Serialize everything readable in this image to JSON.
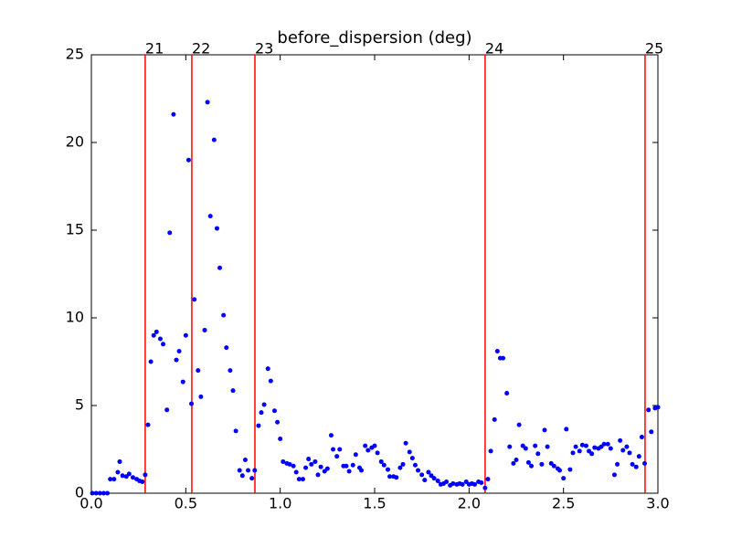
{
  "chart_data": {
    "type": "scatter",
    "title": "before_dispersion (deg)",
    "color": "#0000ff",
    "line_color": "#ff0000",
    "xlim": [
      0,
      3
    ],
    "ylim": [
      0,
      25
    ],
    "xticks": [
      {
        "value": 0,
        "label": "0.0"
      },
      {
        "value": 0.5,
        "label": "0.5"
      },
      {
        "value": 1,
        "label": "1.0"
      },
      {
        "value": 1.5,
        "label": "1.5"
      },
      {
        "value": 2,
        "label": "2.0"
      },
      {
        "value": 2.5,
        "label": "2.5"
      },
      {
        "value": 3,
        "label": "3.0"
      }
    ],
    "yticks": [
      0,
      5,
      10,
      15,
      20,
      25
    ],
    "vlines": [
      {
        "x": 0.285,
        "label": "21"
      },
      {
        "x": 0.532,
        "label": "22"
      },
      {
        "x": 0.866,
        "label": "23"
      },
      {
        "x": 2.085,
        "label": "24"
      },
      {
        "x": 2.932,
        "label": "25"
      }
    ],
    "x": [
      0.005,
      0.025,
      0.045,
      0.065,
      0.085,
      0.1,
      0.12,
      0.14,
      0.15,
      0.165,
      0.185,
      0.2,
      0.22,
      0.24,
      0.255,
      0.27,
      0.285,
      0.3,
      0.315,
      0.33,
      0.345,
      0.365,
      0.38,
      0.4,
      0.415,
      0.435,
      0.45,
      0.465,
      0.485,
      0.5,
      0.515,
      0.53,
      0.545,
      0.565,
      0.58,
      0.6,
      0.615,
      0.63,
      0.65,
      0.665,
      0.68,
      0.7,
      0.715,
      0.735,
      0.75,
      0.765,
      0.785,
      0.8,
      0.815,
      0.83,
      0.85,
      0.865,
      0.885,
      0.9,
      0.915,
      0.935,
      0.95,
      0.97,
      0.985,
      1.0,
      1.015,
      1.035,
      1.05,
      1.07,
      1.085,
      1.1,
      1.12,
      1.135,
      1.15,
      1.165,
      1.185,
      1.2,
      1.215,
      1.235,
      1.25,
      1.27,
      1.28,
      1.3,
      1.315,
      1.335,
      1.35,
      1.365,
      1.385,
      1.4,
      1.42,
      1.43,
      1.45,
      1.465,
      1.485,
      1.5,
      1.515,
      1.535,
      1.55,
      1.57,
      1.58,
      1.6,
      1.615,
      1.635,
      1.65,
      1.665,
      1.685,
      1.7,
      1.715,
      1.73,
      1.75,
      1.765,
      1.785,
      1.8,
      1.815,
      1.835,
      1.85,
      1.865,
      1.88,
      1.9,
      1.915,
      1.935,
      1.95,
      1.965,
      1.985,
      2.0,
      2.015,
      2.03,
      2.05,
      2.065,
      2.085,
      2.1,
      2.115,
      2.135,
      2.15,
      2.165,
      2.18,
      2.2,
      2.215,
      2.235,
      2.25,
      2.265,
      2.285,
      2.3,
      2.315,
      2.33,
      2.35,
      2.365,
      2.385,
      2.4,
      2.415,
      2.435,
      2.45,
      2.47,
      2.48,
      2.5,
      2.515,
      2.535,
      2.55,
      2.565,
      2.585,
      2.6,
      2.62,
      2.635,
      2.65,
      2.665,
      2.685,
      2.7,
      2.715,
      2.735,
      2.75,
      2.77,
      2.785,
      2.8,
      2.815,
      2.835,
      2.85,
      2.865,
      2.885,
      2.9,
      2.915,
      2.93,
      2.95,
      2.965,
      2.985,
      3.0
    ],
    "values": [
      0,
      0,
      0,
      0,
      0,
      0.8,
      0.8,
      1.2,
      1.8,
      1.0,
      0.95,
      1.1,
      0.9,
      0.8,
      0.7,
      0.65,
      1.05,
      3.9,
      7.5,
      9.0,
      9.2,
      8.8,
      8.5,
      4.75,
      14.85,
      21.6,
      7.6,
      8.1,
      6.35,
      9.0,
      19.0,
      5.1,
      11.05,
      7.0,
      5.5,
      9.3,
      22.3,
      15.8,
      20.15,
      15.1,
      12.85,
      10.15,
      8.3,
      7.0,
      5.85,
      3.55,
      1.3,
      1.0,
      1.9,
      1.3,
      0.85,
      1.3,
      3.85,
      4.6,
      5.05,
      7.1,
      6.4,
      4.7,
      4.05,
      3.1,
      1.8,
      1.7,
      1.65,
      1.55,
      1.2,
      0.8,
      0.8,
      1.45,
      1.95,
      1.65,
      1.8,
      1.05,
      1.5,
      1.25,
      1.4,
      3.3,
      2.5,
      2.1,
      2.5,
      1.55,
      1.55,
      1.25,
      1.6,
      2.2,
      1.45,
      1.3,
      2.7,
      2.45,
      2.6,
      2.7,
      2.3,
      1.8,
      1.6,
      1.35,
      0.95,
      0.95,
      0.9,
      1.45,
      1.65,
      2.85,
      2.35,
      2.0,
      1.6,
      1.3,
      1.05,
      0.75,
      1.2,
      1.0,
      0.85,
      0.7,
      0.5,
      0.55,
      0.65,
      0.45,
      0.55,
      0.5,
      0.55,
      0.5,
      0.65,
      0.5,
      0.55,
      0.5,
      0.65,
      0.6,
      0.3,
      0.8,
      2.4,
      4.2,
      8.1,
      7.7,
      7.7,
      5.7,
      2.65,
      1.7,
      1.9,
      3.9,
      2.7,
      2.55,
      1.75,
      1.55,
      2.7,
      2.25,
      1.65,
      3.6,
      2.65,
      1.7,
      1.55,
      1.4,
      1.3,
      0.85,
      3.65,
      1.35,
      2.3,
      2.65,
      2.4,
      2.75,
      2.7,
      2.4,
      2.25,
      2.6,
      2.55,
      2.65,
      2.8,
      2.8,
      2.55,
      1.05,
      1.65,
      3.0,
      2.45,
      2.65,
      2.3,
      1.65,
      1.5,
      2.1,
      3.2,
      1.7,
      4.75,
      3.5,
      4.85,
      4.9
    ]
  }
}
